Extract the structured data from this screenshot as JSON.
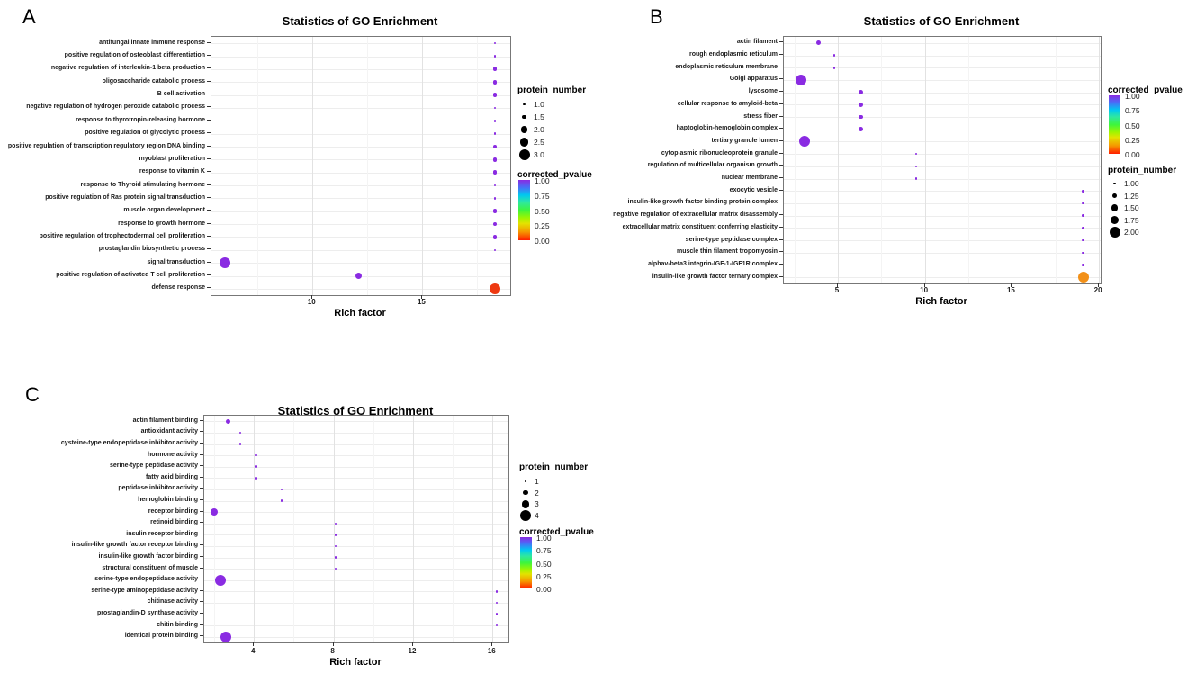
{
  "chart_data": [
    {
      "type": "scatter",
      "panel_label": "A",
      "title": "Statistics of GO Enrichment",
      "xlabel": "Rich factor",
      "xlim": [
        5.4,
        19.0
      ],
      "xticks": [
        10,
        15
      ],
      "xtick_labels": [
        "10",
        "15"
      ],
      "grid": true,
      "legend_order": [
        "size",
        "color"
      ],
      "size_legend": {
        "title": "protein_number",
        "values": [
          1,
          1.5,
          2,
          2.5,
          3
        ],
        "labels": [
          "1.0",
          "1.5",
          "2.0",
          "2.5",
          "3.0"
        ]
      },
      "color_legend": {
        "title": "corrected_pvalue",
        "labels": [
          "1.00",
          "0.75",
          "0.50",
          "0.25",
          "0.00"
        ],
        "stops": [
          {
            "color": "#8A2BE2",
            "pos": 0
          },
          {
            "color": "#4A6CF7",
            "pos": 12
          },
          {
            "color": "#00C8F0",
            "pos": 25
          },
          {
            "color": "#2EE8A0",
            "pos": 37
          },
          {
            "color": "#3DF53D",
            "pos": 50
          },
          {
            "color": "#9FF500",
            "pos": 63
          },
          {
            "color": "#E3E300",
            "pos": 72
          },
          {
            "color": "#F59800",
            "pos": 86
          },
          {
            "color": "#FF1E00",
            "pos": 100
          }
        ]
      },
      "rows": [
        {
          "label": "antifungal innate immune response",
          "rich_factor": 18.3,
          "protein_number": 1,
          "corrected_pvalue": 1.0,
          "color": "#8A2BE2"
        },
        {
          "label": "positive regulation of osteoblast differentiation",
          "rich_factor": 18.3,
          "protein_number": 1,
          "corrected_pvalue": 1.0,
          "color": "#8A2BE2"
        },
        {
          "label": "negative regulation of interleukin-1 beta production",
          "rich_factor": 18.3,
          "protein_number": 1.5,
          "corrected_pvalue": 1.0,
          "color": "#8A2BE2"
        },
        {
          "label": "oligosaccharide catabolic process",
          "rich_factor": 18.3,
          "protein_number": 1.5,
          "corrected_pvalue": 1.0,
          "color": "#8A2BE2"
        },
        {
          "label": "B cell activation",
          "rich_factor": 18.3,
          "protein_number": 1.5,
          "corrected_pvalue": 1.0,
          "color": "#8A2BE2"
        },
        {
          "label": "negative regulation of hydrogen peroxide catabolic process",
          "rich_factor": 18.3,
          "protein_number": 1,
          "corrected_pvalue": 1.0,
          "color": "#8A2BE2"
        },
        {
          "label": "response to thyrotropin-releasing hormone",
          "rich_factor": 18.3,
          "protein_number": 1,
          "corrected_pvalue": 1.0,
          "color": "#8A2BE2"
        },
        {
          "label": "positive regulation of glycolytic process",
          "rich_factor": 18.3,
          "protein_number": 1,
          "corrected_pvalue": 1.0,
          "color": "#8A2BE2"
        },
        {
          "label": "positive regulation of transcription regulatory region DNA binding",
          "rich_factor": 18.3,
          "protein_number": 1.5,
          "corrected_pvalue": 1.0,
          "color": "#8A2BE2"
        },
        {
          "label": "myoblast proliferation",
          "rich_factor": 18.3,
          "protein_number": 1.5,
          "corrected_pvalue": 1.0,
          "color": "#8A2BE2"
        },
        {
          "label": "response to vitamin K",
          "rich_factor": 18.3,
          "protein_number": 1.5,
          "corrected_pvalue": 1.0,
          "color": "#8A2BE2"
        },
        {
          "label": "response to Thyroid stimulating hormone",
          "rich_factor": 18.3,
          "protein_number": 1,
          "corrected_pvalue": 1.0,
          "color": "#8A2BE2"
        },
        {
          "label": "positive regulation of Ras protein signal transduction",
          "rich_factor": 18.3,
          "protein_number": 1,
          "corrected_pvalue": 1.0,
          "color": "#8A2BE2"
        },
        {
          "label": "muscle organ development",
          "rich_factor": 18.3,
          "protein_number": 1.5,
          "corrected_pvalue": 1.0,
          "color": "#8A2BE2"
        },
        {
          "label": "response to growth hormone",
          "rich_factor": 18.3,
          "protein_number": 1.5,
          "corrected_pvalue": 1.0,
          "color": "#8A2BE2"
        },
        {
          "label": "positive regulation of trophectodermal cell proliferation",
          "rich_factor": 18.3,
          "protein_number": 1.5,
          "corrected_pvalue": 1.0,
          "color": "#8A2BE2"
        },
        {
          "label": "prostaglandin biosynthetic process",
          "rich_factor": 18.3,
          "protein_number": 1,
          "corrected_pvalue": 1.0,
          "color": "#8A2BE2"
        },
        {
          "label": "signal transduction",
          "rich_factor": 6.0,
          "protein_number": 3,
          "corrected_pvalue": 1.0,
          "color": "#8A2BE2"
        },
        {
          "label": "positive regulation of activated T cell proliferation",
          "rich_factor": 12.1,
          "protein_number": 2,
          "corrected_pvalue": 1.0,
          "color": "#8A2BE2"
        },
        {
          "label": "defense response",
          "rich_factor": 18.3,
          "protein_number": 3,
          "corrected_pvalue": 0.02,
          "color": "#EE3911"
        }
      ]
    },
    {
      "type": "scatter",
      "panel_label": "B",
      "title": "Statistics of GO Enrichment",
      "xlabel": "Rich factor",
      "xlim": [
        1.9,
        20.1
      ],
      "xticks": [
        5,
        10,
        15,
        20
      ],
      "xtick_labels": [
        "5",
        "10",
        "15",
        "20"
      ],
      "grid": true,
      "legend_order": [
        "color",
        "size"
      ],
      "size_legend": {
        "title": "protein_number",
        "values": [
          1,
          1.25,
          1.5,
          1.75,
          2
        ],
        "labels": [
          "1.00",
          "1.25",
          "1.50",
          "1.75",
          "2.00"
        ]
      },
      "color_legend": {
        "title": "corrected_pvalue",
        "labels": [
          "1.00",
          "0.75",
          "0.50",
          "0.25",
          "0.00"
        ],
        "stops": [
          {
            "color": "#8A2BE2",
            "pos": 0
          },
          {
            "color": "#4A6CF7",
            "pos": 12
          },
          {
            "color": "#00C8F0",
            "pos": 25
          },
          {
            "color": "#2EE8A0",
            "pos": 37
          },
          {
            "color": "#3DF53D",
            "pos": 50
          },
          {
            "color": "#9FF500",
            "pos": 63
          },
          {
            "color": "#E3E300",
            "pos": 72
          },
          {
            "color": "#F59800",
            "pos": 86
          },
          {
            "color": "#FF1E00",
            "pos": 100
          }
        ]
      },
      "rows": [
        {
          "label": "actin filament",
          "rich_factor": 3.9,
          "protein_number": 1.25,
          "corrected_pvalue": 1.0,
          "color": "#8A2BE2"
        },
        {
          "label": "rough endoplasmic reticulum",
          "rich_factor": 4.8,
          "protein_number": 1,
          "corrected_pvalue": 1.0,
          "color": "#8A2BE2"
        },
        {
          "label": "endoplasmic reticulum membrane",
          "rich_factor": 4.8,
          "protein_number": 1,
          "corrected_pvalue": 1.0,
          "color": "#8A2BE2"
        },
        {
          "label": "Golgi apparatus",
          "rich_factor": 2.9,
          "protein_number": 2,
          "corrected_pvalue": 1.0,
          "color": "#8A2BE2"
        },
        {
          "label": "lysosome",
          "rich_factor": 6.3,
          "protein_number": 1.25,
          "corrected_pvalue": 1.0,
          "color": "#8A2BE2"
        },
        {
          "label": "cellular response to amyloid-beta",
          "rich_factor": 6.3,
          "protein_number": 1.25,
          "corrected_pvalue": 1.0,
          "color": "#8A2BE2"
        },
        {
          "label": "stress fiber",
          "rich_factor": 6.3,
          "protein_number": 1.25,
          "corrected_pvalue": 1.0,
          "color": "#8A2BE2"
        },
        {
          "label": "haptoglobin-hemoglobin complex",
          "rich_factor": 6.3,
          "protein_number": 1.25,
          "corrected_pvalue": 1.0,
          "color": "#8A2BE2"
        },
        {
          "label": "tertiary granule lumen",
          "rich_factor": 3.1,
          "protein_number": 2,
          "corrected_pvalue": 1.0,
          "color": "#8A2BE2"
        },
        {
          "label": "cytoplasmic ribonucleoprotein granule",
          "rich_factor": 9.5,
          "protein_number": 1,
          "corrected_pvalue": 1.0,
          "color": "#8A2BE2"
        },
        {
          "label": "regulation of multicellular organism growth",
          "rich_factor": 9.5,
          "protein_number": 1,
          "corrected_pvalue": 1.0,
          "color": "#8A2BE2"
        },
        {
          "label": "nuclear membrane",
          "rich_factor": 9.5,
          "protein_number": 1,
          "corrected_pvalue": 1.0,
          "color": "#8A2BE2"
        },
        {
          "label": "exocytic vesicle",
          "rich_factor": 19.1,
          "protein_number": 1,
          "corrected_pvalue": 1.0,
          "color": "#8A2BE2"
        },
        {
          "label": "insulin-like growth factor binding protein complex",
          "rich_factor": 19.1,
          "protein_number": 1,
          "corrected_pvalue": 1.0,
          "color": "#8A2BE2"
        },
        {
          "label": "negative regulation of extracellular matrix disassembly",
          "rich_factor": 19.1,
          "protein_number": 1,
          "corrected_pvalue": 1.0,
          "color": "#8A2BE2"
        },
        {
          "label": "extracellular matrix constituent conferring elasticity",
          "rich_factor": 19.1,
          "protein_number": 1,
          "corrected_pvalue": 1.0,
          "color": "#8A2BE2"
        },
        {
          "label": "serine-type peptidase complex",
          "rich_factor": 19.1,
          "protein_number": 1,
          "corrected_pvalue": 1.0,
          "color": "#8A2BE2"
        },
        {
          "label": "muscle thin filament tropomyosin",
          "rich_factor": 19.1,
          "protein_number": 1,
          "corrected_pvalue": 1.0,
          "color": "#8A2BE2"
        },
        {
          "label": "alphav-beta3 integrin-IGF-1-IGF1R complex",
          "rich_factor": 19.1,
          "protein_number": 1,
          "corrected_pvalue": 1.0,
          "color": "#8A2BE2"
        },
        {
          "label": "insulin-like growth factor ternary complex",
          "rich_factor": 19.1,
          "protein_number": 2,
          "corrected_pvalue": 0.12,
          "color": "#F29018"
        }
      ]
    },
    {
      "type": "scatter",
      "panel_label": "C",
      "title": "Statistics of GO Enrichment",
      "xlabel": "Rich factor",
      "xlim": [
        1.5,
        16.8
      ],
      "xticks": [
        4,
        8,
        12,
        16
      ],
      "xtick_labels": [
        "4",
        "8",
        "12",
        "16"
      ],
      "grid": true,
      "legend_order": [
        "size",
        "color"
      ],
      "size_legend": {
        "title": "protein_number",
        "values": [
          1,
          2,
          3,
          4
        ],
        "labels": [
          "1",
          "2",
          "3",
          "4"
        ]
      },
      "color_legend": {
        "title": "corrected_pvalue",
        "labels": [
          "1.00",
          "0.75",
          "0.50",
          "0.25",
          "0.00"
        ],
        "stops": [
          {
            "color": "#8A2BE2",
            "pos": 0
          },
          {
            "color": "#4A6CF7",
            "pos": 12
          },
          {
            "color": "#00C8F0",
            "pos": 25
          },
          {
            "color": "#2EE8A0",
            "pos": 37
          },
          {
            "color": "#3DF53D",
            "pos": 50
          },
          {
            "color": "#9FF500",
            "pos": 63
          },
          {
            "color": "#E3E300",
            "pos": 72
          },
          {
            "color": "#F59800",
            "pos": 86
          },
          {
            "color": "#FF1E00",
            "pos": 100
          }
        ]
      },
      "rows": [
        {
          "label": "actin filament binding",
          "rich_factor": 2.7,
          "protein_number": 2,
          "corrected_pvalue": 1.0,
          "color": "#8A2BE2"
        },
        {
          "label": "antioxidant activity",
          "rich_factor": 3.3,
          "protein_number": 1,
          "corrected_pvalue": 1.0,
          "color": "#8A2BE2"
        },
        {
          "label": "cysteine-type endopeptidase inhibitor activity",
          "rich_factor": 3.3,
          "protein_number": 1,
          "corrected_pvalue": 1.0,
          "color": "#8A2BE2"
        },
        {
          "label": "hormone activity",
          "rich_factor": 4.1,
          "protein_number": 1,
          "corrected_pvalue": 1.0,
          "color": "#8A2BE2"
        },
        {
          "label": "serine-type peptidase activity",
          "rich_factor": 4.1,
          "protein_number": 1,
          "corrected_pvalue": 1.0,
          "color": "#8A2BE2"
        },
        {
          "label": "fatty acid binding",
          "rich_factor": 4.1,
          "protein_number": 1,
          "corrected_pvalue": 1.0,
          "color": "#8A2BE2"
        },
        {
          "label": "peptidase inhibitor activity",
          "rich_factor": 5.4,
          "protein_number": 1,
          "corrected_pvalue": 1.0,
          "color": "#8A2BE2"
        },
        {
          "label": "hemoglobin binding",
          "rich_factor": 5.4,
          "protein_number": 1,
          "corrected_pvalue": 1.0,
          "color": "#8A2BE2"
        },
        {
          "label": "receptor binding",
          "rich_factor": 2.0,
          "protein_number": 3,
          "corrected_pvalue": 1.0,
          "color": "#8A2BE2"
        },
        {
          "label": "retinoid binding",
          "rich_factor": 8.1,
          "protein_number": 1,
          "corrected_pvalue": 1.0,
          "color": "#8A2BE2"
        },
        {
          "label": "insulin receptor binding",
          "rich_factor": 8.1,
          "protein_number": 1,
          "corrected_pvalue": 1.0,
          "color": "#8A2BE2"
        },
        {
          "label": "insulin-like growth factor receptor binding",
          "rich_factor": 8.1,
          "protein_number": 1,
          "corrected_pvalue": 1.0,
          "color": "#8A2BE2"
        },
        {
          "label": "insulin-like growth factor binding",
          "rich_factor": 8.1,
          "protein_number": 1,
          "corrected_pvalue": 1.0,
          "color": "#8A2BE2"
        },
        {
          "label": "structural constituent of muscle",
          "rich_factor": 8.1,
          "protein_number": 1,
          "corrected_pvalue": 1.0,
          "color": "#8A2BE2"
        },
        {
          "label": "serine-type endopeptidase activity",
          "rich_factor": 2.3,
          "protein_number": 4,
          "corrected_pvalue": 1.0,
          "color": "#8A2BE2"
        },
        {
          "label": "serine-type aminopeptidase activity",
          "rich_factor": 16.2,
          "protein_number": 1,
          "corrected_pvalue": 1.0,
          "color": "#8A2BE2"
        },
        {
          "label": "chitinase activity",
          "rich_factor": 16.2,
          "protein_number": 1,
          "corrected_pvalue": 1.0,
          "color": "#8A2BE2"
        },
        {
          "label": "prostaglandin-D synthase activity",
          "rich_factor": 16.2,
          "protein_number": 1,
          "corrected_pvalue": 1.0,
          "color": "#8A2BE2"
        },
        {
          "label": "chitin binding",
          "rich_factor": 16.2,
          "protein_number": 1,
          "corrected_pvalue": 1.0,
          "color": "#8A2BE2"
        },
        {
          "label": "identical protein binding",
          "rich_factor": 2.6,
          "protein_number": 4,
          "corrected_pvalue": 1.0,
          "color": "#8A2BE2"
        }
      ]
    }
  ]
}
